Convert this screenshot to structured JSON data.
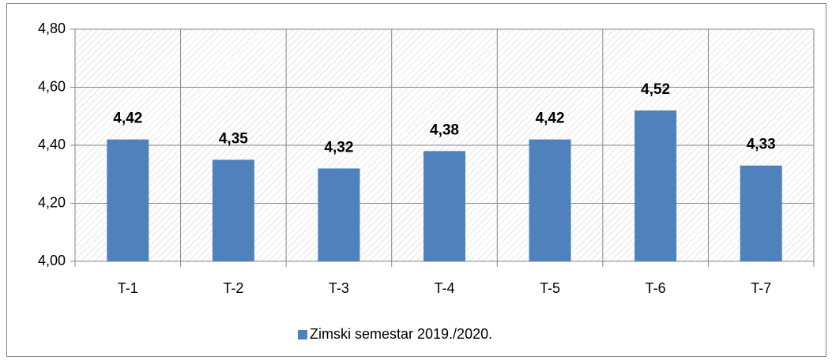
{
  "chart_data": {
    "type": "bar",
    "categories": [
      "T-1",
      "T-2",
      "T-3",
      "T-4",
      "T-5",
      "T-6",
      "T-7"
    ],
    "series": [
      {
        "name": "Zimski semestar 2019./2020.",
        "color": "#4f81bd",
        "values": [
          4.42,
          4.35,
          4.32,
          4.38,
          4.42,
          4.52,
          4.33
        ],
        "value_labels": [
          "4,42",
          "4,35",
          "4,32",
          "4,38",
          "4,42",
          "4,52",
          "4,33"
        ]
      }
    ],
    "ylim": [
      4.0,
      4.8
    ],
    "yticks": [
      {
        "value": 4.0,
        "label": "4,00"
      },
      {
        "value": 4.2,
        "label": "4,20"
      },
      {
        "value": 4.4,
        "label": "4,40"
      },
      {
        "value": 4.6,
        "label": "4,60"
      },
      {
        "value": 4.8,
        "label": "4,80"
      }
    ],
    "grid": true,
    "legend": "bottom"
  }
}
